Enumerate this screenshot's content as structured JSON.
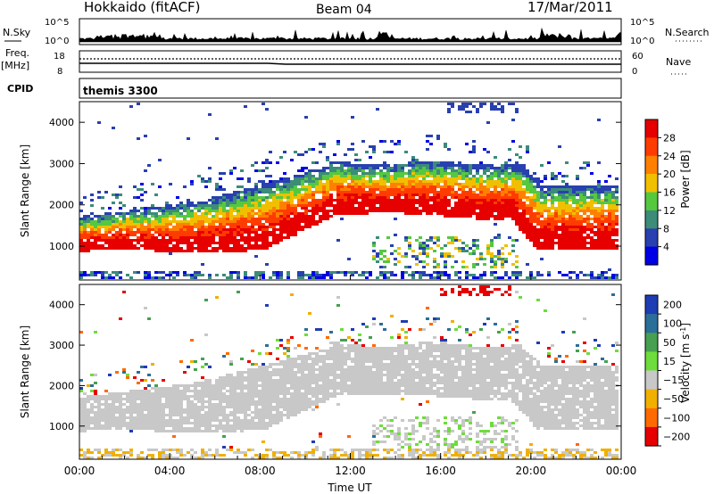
{
  "header": {
    "title": "Hokkaido (fitACF)",
    "beam": "Beam 04",
    "date": "17/Mar/2011"
  },
  "noise_panel": {
    "left_label": "N.Sky",
    "right_label": "N.Search",
    "left_ticks": [
      "10^5",
      "10^0"
    ],
    "right_ticks": [
      "10^5",
      "10^0"
    ]
  },
  "freq_panel": {
    "left_label": "Freq.",
    "left_unit": "[MHz]",
    "right_label": "Nave",
    "left_ticks": [
      "18",
      "8"
    ],
    "right_ticks": [
      "60",
      "0"
    ]
  },
  "cpid_panel": {
    "label": "CPID",
    "text": "themis 3300"
  },
  "chart_data": [
    {
      "type": "heatmap",
      "name": "power",
      "ylabel": "Slant Range [km]",
      "colorbar_label": "Power [dB]",
      "ylim": [
        180,
        4500
      ],
      "yticks": [
        "1000",
        "2000",
        "3000",
        "4000"
      ],
      "colorbar_ticks": [
        "4",
        "8",
        "12",
        "16",
        "20",
        "24",
        "28"
      ],
      "colors": [
        "#0000e6",
        "#2840b0",
        "#3c8c78",
        "#55c840",
        "#f0c000",
        "#ff8000",
        "#ff3c00",
        "#e60000"
      ]
    },
    {
      "type": "heatmap",
      "name": "velocity",
      "ylabel": "Slant Range [km]",
      "colorbar_label": "Velocity [m s^-1]",
      "ylim": [
        180,
        4500
      ],
      "yticks": [
        "1000",
        "2000",
        "3000",
        "4000"
      ],
      "colorbar_ticks": [
        "200",
        "100",
        "50",
        "15",
        "−15",
        "−50",
        "−100",
        "−200"
      ],
      "colors": [
        "#1e3cb4",
        "#2c6e9a",
        "#46a050",
        "#6edc3c",
        "#c8c8c8",
        "#f0b000",
        "#ff6a00",
        "#e60000"
      ]
    }
  ],
  "time_axis": {
    "xlabel": "Time UT",
    "ticks": [
      "00:00",
      "04:00",
      "08:00",
      "12:00",
      "16:00",
      "20:00",
      "00:00"
    ]
  }
}
